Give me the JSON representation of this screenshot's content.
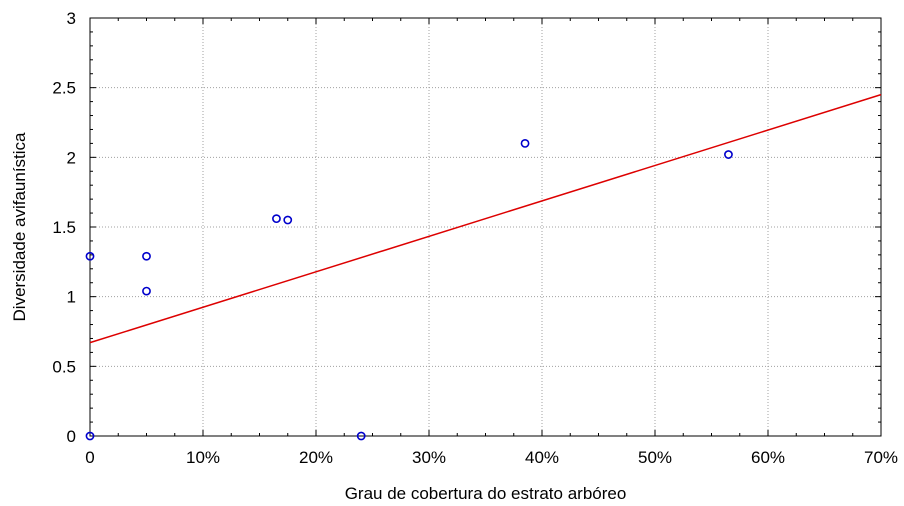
{
  "chart_data": {
    "type": "scatter",
    "xlabel": "Grau de cobertura do estrato arbóreo",
    "ylabel": "Diversidade avifaunística",
    "xlim": [
      0,
      0.7
    ],
    "ylim": [
      0,
      3
    ],
    "x_ticks": [
      0,
      0.1,
      0.2,
      0.3,
      0.4,
      0.5,
      0.6,
      0.7
    ],
    "x_tick_labels": [
      "0",
      "10%",
      "20%",
      "30%",
      "40%",
      "50%",
      "60%",
      "70%"
    ],
    "y_ticks": [
      0,
      0.5,
      1,
      1.5,
      2,
      2.5,
      3
    ],
    "y_tick_labels": [
      "0",
      "0.5",
      "1",
      "1.5",
      "2",
      "2.5",
      "3"
    ],
    "grid": true,
    "series": [
      {
        "points": [
          {
            "x": 0.0,
            "y": 1.29
          },
          {
            "x": 0.0,
            "y": 0.0
          },
          {
            "x": 0.05,
            "y": 1.29
          },
          {
            "x": 0.05,
            "y": 1.04
          },
          {
            "x": 0.165,
            "y": 1.56
          },
          {
            "x": 0.175,
            "y": 1.55
          },
          {
            "x": 0.24,
            "y": 0.0
          },
          {
            "x": 0.385,
            "y": 2.1
          },
          {
            "x": 0.565,
            "y": 2.02
          }
        ],
        "marker": "open-circle",
        "color": "#0000cc"
      }
    ],
    "fit_line": {
      "type": "linear",
      "x_start": 0,
      "y_start": 0.67,
      "x_end": 0.7,
      "y_end": 2.45,
      "color": "#dd0000"
    }
  }
}
